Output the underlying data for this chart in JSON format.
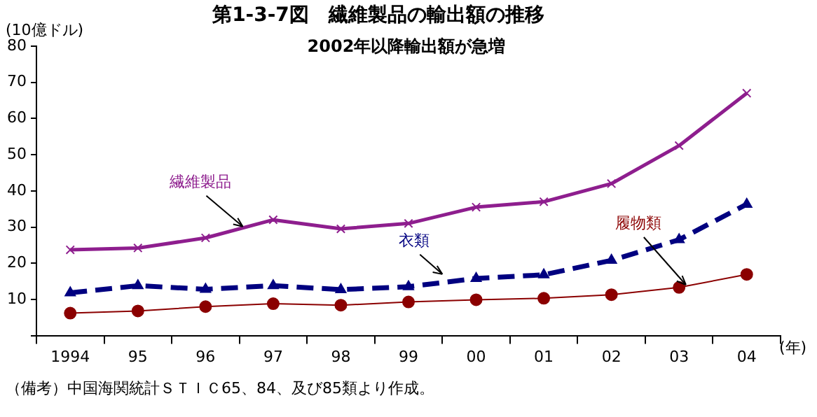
{
  "chart_data": {
    "type": "line",
    "title": "第1-3-7図　繊維製品の輸出額の推移",
    "subtitle": "2002年以降輸出額が急増",
    "ylabel": "(10億ドル)",
    "xlabel": "(年)",
    "categories": [
      "1994",
      "95",
      "96",
      "97",
      "98",
      "99",
      "00",
      "01",
      "02",
      "03",
      "04"
    ],
    "series": [
      {
        "name": "繊維製品",
        "color": "#8e1e8e",
        "marker": "cross",
        "line_style": "solid",
        "values": [
          23.7,
          24.2,
          27,
          32,
          29.5,
          31,
          35.5,
          37,
          42,
          52.5,
          67
        ]
      },
      {
        "name": "衣類",
        "color": "#000080",
        "marker": "triangle",
        "line_style": "dashed",
        "values": [
          11.8,
          13.8,
          12.8,
          13.8,
          12.7,
          13.5,
          15.8,
          16.8,
          20.8,
          26.5,
          36.3
        ]
      },
      {
        "name": "履物類",
        "color": "#8b0000",
        "marker": "circle",
        "line_style": "solid",
        "values": [
          6.2,
          6.8,
          8.0,
          8.8,
          8.4,
          9.3,
          9.9,
          10.3,
          11.3,
          13.3,
          16.9
        ]
      }
    ],
    "ylim": [
      0,
      80
    ],
    "yticks": [
      {
        "value": 0,
        "label": null
      },
      10,
      20,
      30,
      40,
      50,
      60,
      70,
      80
    ],
    "grid": false,
    "legend": false,
    "annotations": [
      "（備考）中国海関統計ＳＴＩＣ65、84、及び85類より作成。"
    ]
  }
}
